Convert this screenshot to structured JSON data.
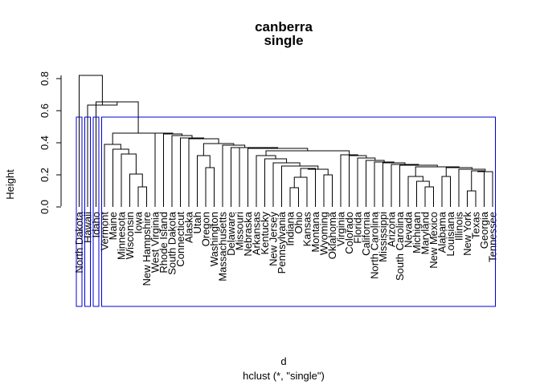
{
  "chart_data": {
    "type": "dendrogram",
    "title_line1": "canberra",
    "title_line2": "single",
    "xlabel": "d",
    "sublabel": "hclust (*, \"single\")",
    "ylabel": "Height",
    "ylim": [
      0,
      0.82
    ],
    "yticks": [
      0.0,
      0.2,
      0.4,
      0.6,
      0.8
    ],
    "ytick_labels": [
      "0.0",
      "0.2",
      "0.4",
      "0.6",
      "0.8"
    ],
    "k_clusters": 4,
    "rect_color": "#0000CD",
    "leaves": [
      "North Dakota",
      "Hawaii",
      "Idaho",
      "Vermont",
      "Maine",
      "Minnesota",
      "Wisconsin",
      "Iowa",
      "New Hampshire",
      "West Virginia",
      "Rhode Island",
      "South Dakota",
      "Connecticut",
      "Alaska",
      "Utah",
      "Oregon",
      "Washington",
      "Massachusetts",
      "Delaware",
      "Missouri",
      "Nebraska",
      "Arkansas",
      "Kentucky",
      "New Jersey",
      "Pennsylvania",
      "Indiana",
      "Ohio",
      "Kansas",
      "Montana",
      "Wyoming",
      "Oklahoma",
      "Virginia",
      "Colorado",
      "Florida",
      "California",
      "North Carolina",
      "Mississippi",
      "Arizona",
      "South Carolina",
      "Nevada",
      "Michigan",
      "Maryland",
      "New Mexico",
      "Alabama",
      "Louisiana",
      "Illinois",
      "New York",
      "Texas",
      "Georgia",
      "Tennessee"
    ],
    "merges": [
      {
        "id": "A",
        "h": 0.125,
        "children": [
          "Iowa",
          "New Hampshire"
        ]
      },
      {
        "id": "B",
        "h": 0.205,
        "children": [
          "Wisconsin",
          "A"
        ]
      },
      {
        "id": "C",
        "h": 0.33,
        "children": [
          "Minnesota",
          "B"
        ]
      },
      {
        "id": "D",
        "h": 0.36,
        "children": [
          "Maine",
          "C"
        ]
      },
      {
        "id": "E",
        "h": 0.39,
        "children": [
          "Vermont",
          "D"
        ]
      },
      {
        "id": "F",
        "h": 0.245,
        "children": [
          "Oregon",
          "Washington"
        ]
      },
      {
        "id": "G",
        "h": 0.32,
        "children": [
          "Utah",
          "F"
        ]
      },
      {
        "id": "H",
        "h": 0.12,
        "children": [
          "Indiana",
          "Ohio"
        ]
      },
      {
        "id": "I",
        "h": 0.185,
        "children": [
          "H",
          "Kansas"
        ]
      },
      {
        "id": "J",
        "h": 0.24,
        "children": [
          "I",
          "Montana"
        ]
      },
      {
        "id": "K",
        "h": 0.2,
        "children": [
          "Wyoming",
          "Oklahoma"
        ]
      },
      {
        "id": "L",
        "h": 0.235,
        "children": [
          "J",
          "K"
        ]
      },
      {
        "id": "M",
        "h": 0.255,
        "children": [
          "Pennsylvania",
          "L"
        ]
      },
      {
        "id": "N",
        "h": 0.275,
        "children": [
          "New Jersey",
          "M"
        ]
      },
      {
        "id": "O",
        "h": 0.3,
        "children": [
          "Kentucky",
          "N"
        ]
      },
      {
        "id": "P",
        "h": 0.32,
        "children": [
          "Arkansas",
          "O"
        ]
      },
      {
        "id": "Q",
        "h": 0.1,
        "children": [
          "New York",
          "Texas"
        ]
      },
      {
        "id": "R",
        "h": 0.225,
        "children": [
          "Q",
          "Georgia"
        ]
      },
      {
        "id": "S",
        "h": 0.22,
        "children": [
          "R",
          "Tennessee"
        ]
      },
      {
        "id": "T",
        "h": 0.235,
        "children": [
          "Illinois",
          "S"
        ]
      },
      {
        "id": "U",
        "h": 0.19,
        "children": [
          "Alabama",
          "Louisiana"
        ]
      },
      {
        "id": "V",
        "h": 0.245,
        "children": [
          "U",
          "T"
        ]
      },
      {
        "id": "W",
        "h": 0.125,
        "children": [
          "Maryland",
          "New Mexico"
        ]
      },
      {
        "id": "X",
        "h": 0.16,
        "children": [
          "W",
          "Michigan"
        ]
      },
      {
        "id": "Y",
        "h": 0.19,
        "children": [
          "Nevada",
          "X"
        ]
      },
      {
        "id": "Z",
        "h": 0.25,
        "children": [
          "Y",
          "V"
        ]
      },
      {
        "id": "AA",
        "h": 0.26,
        "children": [
          "South Carolina",
          "Z"
        ]
      },
      {
        "id": "AB",
        "h": 0.265,
        "children": [
          "Arizona",
          "AA"
        ]
      },
      {
        "id": "AC",
        "h": 0.275,
        "children": [
          "Mississippi",
          "AB"
        ]
      },
      {
        "id": "AD",
        "h": 0.28,
        "children": [
          "North Carolina",
          "AC"
        ]
      },
      {
        "id": "AE",
        "h": 0.29,
        "children": [
          "California",
          "AD"
        ]
      },
      {
        "id": "AF",
        "h": 0.305,
        "children": [
          "Florida",
          "AE"
        ]
      },
      {
        "id": "AG",
        "h": 0.32,
        "children": [
          "Colorado",
          "AF"
        ]
      },
      {
        "id": "AH",
        "h": 0.325,
        "children": [
          "Virginia",
          "AG"
        ]
      },
      {
        "id": "AI",
        "h": 0.35,
        "children": [
          "P",
          "AH"
        ]
      },
      {
        "id": "AJ",
        "h": 0.365,
        "children": [
          "Nebraska",
          "AI"
        ]
      },
      {
        "id": "AK",
        "h": 0.37,
        "children": [
          "Missouri",
          "AJ"
        ]
      },
      {
        "id": "AL",
        "h": 0.37,
        "children": [
          "Delaware",
          "AK"
        ]
      },
      {
        "id": "AM",
        "h": 0.385,
        "children": [
          "Massachusetts",
          "AL"
        ]
      },
      {
        "id": "AN",
        "h": 0.395,
        "children": [
          "G",
          "AM"
        ]
      },
      {
        "id": "AO",
        "h": 0.425,
        "children": [
          "Alaska",
          "AN"
        ]
      },
      {
        "id": "AP",
        "h": 0.43,
        "children": [
          "Connecticut",
          "AO"
        ]
      },
      {
        "id": "AQ",
        "h": 0.445,
        "children": [
          "South Dakota",
          "AP"
        ]
      },
      {
        "id": "AR",
        "h": 0.455,
        "children": [
          "Rhode Island",
          "AQ"
        ]
      },
      {
        "id": "AS",
        "h": 0.46,
        "children": [
          "West Virginia",
          "AR"
        ]
      },
      {
        "id": "AT",
        "h": 0.46,
        "children": [
          "E",
          "AS"
        ]
      },
      {
        "id": "AU",
        "h": 0.655,
        "children": [
          "Idaho",
          "AT"
        ]
      },
      {
        "id": "AV",
        "h": 0.635,
        "children": [
          "Hawaii",
          "AU"
        ]
      },
      {
        "id": "AW",
        "h": 0.82,
        "children": [
          "North Dakota",
          "AV"
        ]
      }
    ]
  }
}
